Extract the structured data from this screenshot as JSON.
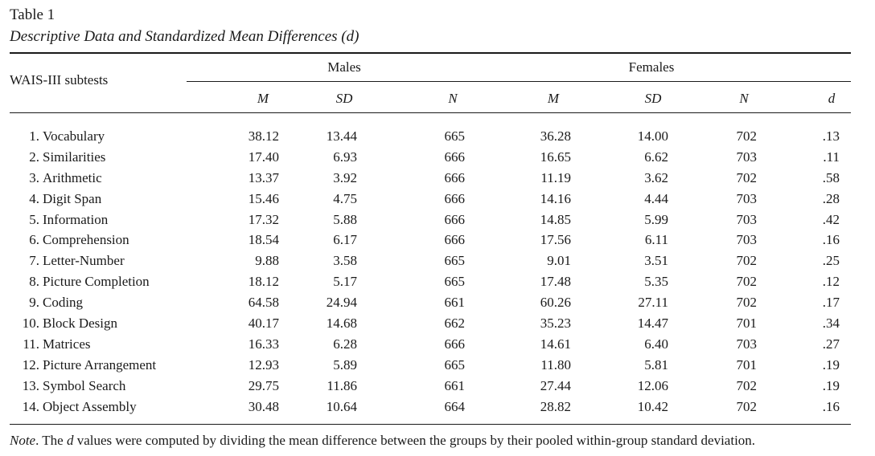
{
  "caption": {
    "label": "Table 1",
    "title": "Descriptive Data and Standardized Mean Differences (d)"
  },
  "header": {
    "stub": "WAIS-III subtests",
    "groups": [
      "Males",
      "Females"
    ],
    "columns": [
      "M",
      "SD",
      "N",
      "M",
      "SD",
      "N",
      "d"
    ]
  },
  "rows": [
    {
      "num": "1.",
      "name": "Vocabulary",
      "values": [
        "38.12",
        "13.44",
        "665",
        "36.28",
        "14.00",
        "702",
        ".13"
      ]
    },
    {
      "num": "2.",
      "name": "Similarities",
      "values": [
        "17.40",
        "6.93",
        "666",
        "16.65",
        "6.62",
        "703",
        ".11"
      ]
    },
    {
      "num": "3.",
      "name": "Arithmetic",
      "values": [
        "13.37",
        "3.92",
        "666",
        "11.19",
        "3.62",
        "702",
        ".58"
      ]
    },
    {
      "num": "4.",
      "name": "Digit Span",
      "values": [
        "15.46",
        "4.75",
        "666",
        "14.16",
        "4.44",
        "703",
        ".28"
      ]
    },
    {
      "num": "5.",
      "name": "Information",
      "values": [
        "17.32",
        "5.88",
        "666",
        "14.85",
        "5.99",
        "703",
        ".42"
      ]
    },
    {
      "num": "6.",
      "name": "Comprehension",
      "values": [
        "18.54",
        "6.17",
        "666",
        "17.56",
        "6.11",
        "703",
        ".16"
      ]
    },
    {
      "num": "7.",
      "name": "Letter-Number",
      "values": [
        "9.88",
        "3.58",
        "665",
        "9.01",
        "3.51",
        "702",
        ".25"
      ]
    },
    {
      "num": "8.",
      "name": "Picture Completion",
      "values": [
        "18.12",
        "5.17",
        "665",
        "17.48",
        "5.35",
        "702",
        ".12"
      ]
    },
    {
      "num": "9.",
      "name": "Coding",
      "values": [
        "64.58",
        "24.94",
        "661",
        "60.26",
        "27.11",
        "702",
        ".17"
      ]
    },
    {
      "num": "10.",
      "name": "Block Design",
      "values": [
        "40.17",
        "14.68",
        "662",
        "35.23",
        "14.47",
        "701",
        ".34"
      ]
    },
    {
      "num": "11.",
      "name": "Matrices",
      "values": [
        "16.33",
        "6.28",
        "666",
        "14.61",
        "6.40",
        "703",
        ".27"
      ]
    },
    {
      "num": "12.",
      "name": "Picture Arrangement",
      "values": [
        "12.93",
        "5.89",
        "665",
        "11.80",
        "5.81",
        "701",
        ".19"
      ]
    },
    {
      "num": "13.",
      "name": "Symbol Search",
      "values": [
        "29.75",
        "11.86",
        "661",
        "27.44",
        "12.06",
        "702",
        ".19"
      ]
    },
    {
      "num": "14.",
      "name": "Object Assembly",
      "values": [
        "30.48",
        "10.64",
        "664",
        "28.82",
        "10.42",
        "702",
        ".16"
      ]
    }
  ],
  "note": {
    "lead": "Note",
    "text_before_symbol": ". The ",
    "symbol": "d",
    "text_after_symbol": " values were computed by dividing the mean difference between the groups by their pooled within-group standard deviation."
  }
}
